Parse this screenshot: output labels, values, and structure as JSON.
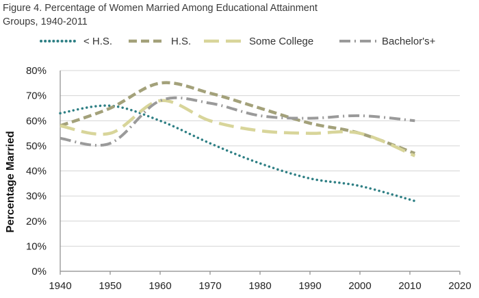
{
  "chart_data": {
    "type": "line",
    "title_line1": "Figure 4. Percentage of Women Married Among Educational Attainment",
    "title_line2": "Groups, 1940-2011",
    "xlabel": "",
    "ylabel": "Percentage Married",
    "xlim": [
      1940,
      2020
    ],
    "ylim": [
      0,
      80
    ],
    "x_ticks": [
      "1940",
      "1950",
      "1960",
      "1970",
      "1980",
      "1990",
      "2000",
      "2010",
      "2020"
    ],
    "y_ticks": [
      "0%",
      "10%",
      "20%",
      "30%",
      "40%",
      "50%",
      "60%",
      "70%",
      "80%"
    ],
    "grid": "horizontal",
    "legend_position": "top",
    "series": [
      {
        "name": "< H.S.",
        "color": "#2e7f84",
        "style": "dotted",
        "x": [
          1940,
          1950,
          1960,
          1970,
          1980,
          1990,
          2000,
          2011
        ],
        "y": [
          63,
          66,
          60,
          51,
          43,
          37,
          34,
          28
        ]
      },
      {
        "name": "H.S.",
        "color": "#a3a17a",
        "style": "dashed",
        "x": [
          1940,
          1950,
          1960,
          1970,
          1980,
          1990,
          2000,
          2011
        ],
        "y": [
          58,
          65,
          75,
          71,
          65,
          59,
          55,
          47
        ]
      },
      {
        "name": "Some College",
        "color": "#d8d59a",
        "style": "longdash",
        "x": [
          1940,
          1950,
          1960,
          1970,
          1980,
          1990,
          2000,
          2011
        ],
        "y": [
          58,
          55,
          68,
          60,
          56,
          55,
          55,
          46
        ]
      },
      {
        "name": "Bachelor's+",
        "color": "#9a9a9a",
        "style": "dashdot",
        "x": [
          1940,
          1950,
          1960,
          1970,
          1980,
          1990,
          2000,
          2011
        ],
        "y": [
          53,
          51,
          68,
          67,
          62,
          61,
          62,
          60
        ]
      }
    ]
  }
}
